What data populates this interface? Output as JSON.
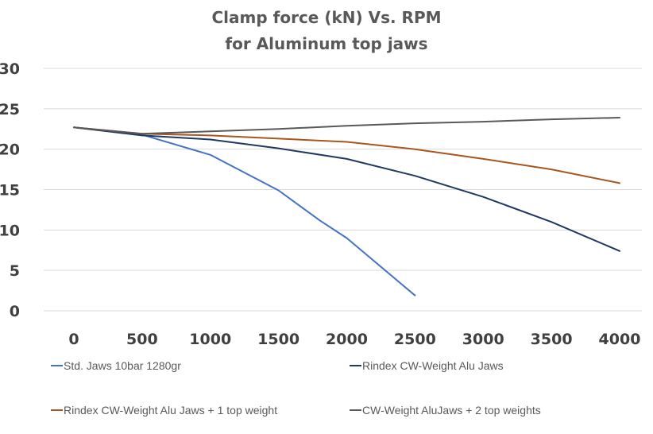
{
  "chart_data": {
    "type": "line",
    "title": [
      "Clamp force (kN) Vs. RPM",
      "for Aluminum top jaws"
    ],
    "xlabel": "",
    "ylabel": "",
    "x": [
      0,
      500,
      1000,
      1500,
      2000,
      2500,
      3000,
      3500,
      4000
    ],
    "xlim": [
      0,
      4000
    ],
    "ylim": [
      0,
      30
    ],
    "yticks": [
      0,
      5,
      10,
      15,
      20,
      25,
      30
    ],
    "grid": "horizontal",
    "legend_position": "bottom",
    "series": [
      {
        "name": "Std. Jaws 10bar 1280gr",
        "color": "#4472c4",
        "x": [
          0,
          500,
          1000,
          1500,
          1800,
          2000,
          2500
        ],
        "y": [
          22.7,
          21.8,
          19.3,
          14.9,
          11.2,
          9.0,
          1.9
        ]
      },
      {
        "name": "Rindex CW-Weight Alu Jaws",
        "color": "#203864",
        "x": [
          0,
          500,
          1000,
          1500,
          2000,
          2500,
          3000,
          3500,
          4000
        ],
        "y": [
          22.7,
          21.7,
          21.2,
          20.1,
          18.8,
          16.7,
          14.1,
          11.0,
          7.4
        ]
      },
      {
        "name": "Rindex CW-Weight Alu Jaws +  1 top weight",
        "color": "#a9561e",
        "x": [
          0,
          500,
          1000,
          1500,
          2000,
          2500,
          3000,
          3500,
          4000
        ],
        "y": [
          22.7,
          21.9,
          21.7,
          21.3,
          20.9,
          20.0,
          18.8,
          17.5,
          15.8
        ]
      },
      {
        "name": "CW-Weight AluJaws + 2 top weights",
        "color": "#595959",
        "x": [
          0,
          500,
          1000,
          1500,
          2000,
          2500,
          3000,
          3500,
          4000
        ],
        "y": [
          22.7,
          21.9,
          22.2,
          22.5,
          22.9,
          23.2,
          23.4,
          23.7,
          23.9
        ]
      }
    ]
  }
}
